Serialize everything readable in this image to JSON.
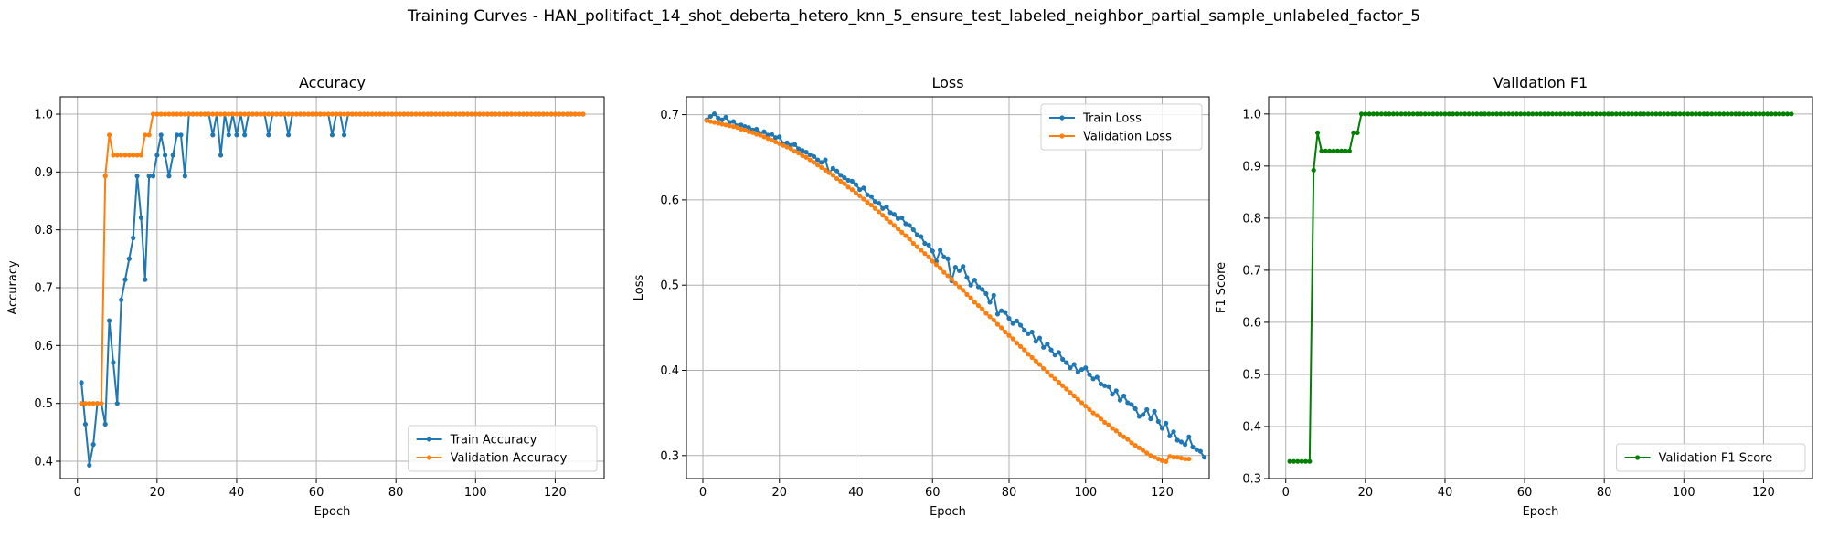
{
  "figure": {
    "suptitle": "Training Curves - HAN_politifact_14_shot_deberta_hetero_knn_5_ensure_test_labeled_neighbor_partial_sample_unlabeled_factor_5"
  },
  "colors": {
    "blue": "#1f77b4",
    "orange": "#ff7f0e",
    "green": "#008000",
    "grid": "#b0b0b0"
  },
  "chart_data": [
    {
      "type": "line",
      "title": "Accuracy",
      "xlabel": "Epoch",
      "ylabel": "Accuracy",
      "xlim": [
        -4.3,
        132.3
      ],
      "ylim": [
        0.37,
        1.03
      ],
      "xticks": [
        0,
        20,
        40,
        60,
        80,
        100,
        120
      ],
      "yticks": [
        0.4,
        0.5,
        0.6,
        0.7,
        0.8,
        0.9,
        1.0
      ],
      "grid": true,
      "legend_position": "lower-right",
      "series": [
        {
          "name": "Train Accuracy",
          "color": "#1f77b4",
          "start_epoch": 1,
          "values": [
            0.536,
            0.464,
            0.393,
            0.429,
            0.5,
            0.5,
            0.464,
            0.643,
            0.571,
            0.5,
            0.679,
            0.714,
            0.75,
            0.786,
            0.893,
            0.821,
            0.714,
            0.893,
            0.893,
            0.929,
            0.964,
            0.929,
            0.893,
            0.929,
            0.964,
            0.964,
            0.893,
            1.0,
            1.0,
            1.0,
            1.0,
            1.0,
            1.0,
            0.964,
            1.0,
            0.929,
            1.0,
            0.964,
            1.0,
            0.964,
            1.0,
            0.964,
            1.0,
            1.0,
            1.0,
            1.0,
            1.0,
            0.964,
            1.0,
            1.0,
            1.0,
            1.0,
            0.964,
            1.0,
            1.0,
            1.0,
            1.0,
            1.0,
            1.0,
            1.0,
            1.0,
            1.0,
            1.0,
            0.964,
            1.0,
            1.0,
            0.964,
            1.0,
            1.0,
            1.0,
            1.0,
            1.0,
            1.0,
            1.0,
            1.0,
            1.0,
            1.0,
            1.0,
            1.0,
            1.0,
            1.0,
            1.0,
            1.0,
            1.0,
            1.0,
            1.0,
            1.0,
            1.0,
            1.0,
            1.0,
            1.0,
            1.0,
            1.0,
            1.0,
            1.0,
            1.0,
            1.0,
            1.0,
            1.0,
            1.0,
            1.0,
            1.0,
            1.0,
            1.0,
            1.0,
            1.0,
            1.0,
            1.0,
            1.0,
            1.0,
            1.0,
            1.0,
            1.0,
            1.0,
            1.0,
            1.0,
            1.0,
            1.0,
            1.0,
            1.0,
            1.0,
            1.0,
            1.0,
            1.0,
            1.0,
            1.0,
            1.0
          ]
        },
        {
          "name": "Validation Accuracy",
          "color": "#ff7f0e",
          "start_epoch": 1,
          "values": [
            0.5,
            0.5,
            0.5,
            0.5,
            0.5,
            0.5,
            0.893,
            0.964,
            0.929,
            0.929,
            0.929,
            0.929,
            0.929,
            0.929,
            0.929,
            0.929,
            0.964,
            0.964,
            1.0,
            1.0,
            1.0,
            1.0,
            1.0,
            1.0,
            1.0,
            1.0,
            1.0,
            1.0,
            1.0,
            1.0,
            1.0,
            1.0,
            1.0,
            1.0,
            1.0,
            1.0,
            1.0,
            1.0,
            1.0,
            1.0,
            1.0,
            1.0,
            1.0,
            1.0,
            1.0,
            1.0,
            1.0,
            1.0,
            1.0,
            1.0,
            1.0,
            1.0,
            1.0,
            1.0,
            1.0,
            1.0,
            1.0,
            1.0,
            1.0,
            1.0,
            1.0,
            1.0,
            1.0,
            1.0,
            1.0,
            1.0,
            1.0,
            1.0,
            1.0,
            1.0,
            1.0,
            1.0,
            1.0,
            1.0,
            1.0,
            1.0,
            1.0,
            1.0,
            1.0,
            1.0,
            1.0,
            1.0,
            1.0,
            1.0,
            1.0,
            1.0,
            1.0,
            1.0,
            1.0,
            1.0,
            1.0,
            1.0,
            1.0,
            1.0,
            1.0,
            1.0,
            1.0,
            1.0,
            1.0,
            1.0,
            1.0,
            1.0,
            1.0,
            1.0,
            1.0,
            1.0,
            1.0,
            1.0,
            1.0,
            1.0,
            1.0,
            1.0,
            1.0,
            1.0,
            1.0,
            1.0,
            1.0,
            1.0,
            1.0,
            1.0,
            1.0,
            1.0,
            1.0,
            1.0,
            1.0,
            1.0,
            1.0
          ]
        }
      ]
    },
    {
      "type": "line",
      "title": "Loss",
      "xlabel": "Epoch",
      "ylabel": "Loss",
      "xlim": [
        -4.3,
        132.3
      ],
      "ylim": [
        0.273,
        0.721
      ],
      "xticks": [
        0,
        20,
        40,
        60,
        80,
        100,
        120
      ],
      "yticks": [
        0.3,
        0.4,
        0.5,
        0.6,
        0.7
      ],
      "grid": true,
      "legend_position": "upper-right",
      "series": [
        {
          "name": "Train Loss",
          "color": "#1f77b4",
          "start_epoch": 1,
          "values": [
            0.694,
            0.698,
            0.701,
            0.696,
            0.694,
            0.697,
            0.691,
            0.692,
            0.687,
            0.688,
            0.686,
            0.685,
            0.682,
            0.683,
            0.678,
            0.68,
            0.676,
            0.677,
            0.673,
            0.674,
            0.666,
            0.667,
            0.664,
            0.665,
            0.66,
            0.658,
            0.656,
            0.653,
            0.651,
            0.647,
            0.644,
            0.647,
            0.632,
            0.637,
            0.634,
            0.629,
            0.626,
            0.623,
            0.622,
            0.618,
            0.612,
            0.614,
            0.606,
            0.604,
            0.598,
            0.596,
            0.59,
            0.592,
            0.585,
            0.583,
            0.578,
            0.579,
            0.572,
            0.57,
            0.565,
            0.559,
            0.557,
            0.549,
            0.547,
            0.54,
            0.528,
            0.541,
            0.533,
            0.531,
            0.505,
            0.521,
            0.517,
            0.522,
            0.509,
            0.5,
            0.506,
            0.498,
            0.495,
            0.49,
            0.48,
            0.488,
            0.466,
            0.47,
            0.468,
            0.461,
            0.455,
            0.458,
            0.453,
            0.447,
            0.443,
            0.445,
            0.434,
            0.438,
            0.427,
            0.431,
            0.424,
            0.418,
            0.421,
            0.413,
            0.409,
            0.403,
            0.407,
            0.398,
            0.401,
            0.403,
            0.395,
            0.39,
            0.392,
            0.384,
            0.382,
            0.381,
            0.372,
            0.376,
            0.365,
            0.37,
            0.362,
            0.36,
            0.355,
            0.346,
            0.348,
            0.354,
            0.343,
            0.352,
            0.34,
            0.332,
            0.338,
            0.323,
            0.328,
            0.318,
            0.316,
            0.313,
            0.322,
            0.31,
            0.307,
            0.305,
            0.298
          ]
        },
        {
          "name": "Validation Loss",
          "color": "#ff7f0e",
          "start_epoch": 1,
          "values": [
            0.693,
            0.692,
            0.691,
            0.69,
            0.689,
            0.688,
            0.687,
            0.686,
            0.685,
            0.683,
            0.682,
            0.68,
            0.679,
            0.677,
            0.676,
            0.674,
            0.672,
            0.67,
            0.668,
            0.666,
            0.664,
            0.662,
            0.66,
            0.657,
            0.655,
            0.652,
            0.65,
            0.647,
            0.644,
            0.641,
            0.638,
            0.635,
            0.632,
            0.629,
            0.625,
            0.622,
            0.619,
            0.615,
            0.612,
            0.608,
            0.605,
            0.601,
            0.597,
            0.594,
            0.59,
            0.586,
            0.582,
            0.578,
            0.574,
            0.57,
            0.566,
            0.562,
            0.558,
            0.554,
            0.549,
            0.545,
            0.541,
            0.537,
            0.533,
            0.528,
            0.524,
            0.52,
            0.515,
            0.511,
            0.507,
            0.502,
            0.498,
            0.494,
            0.489,
            0.485,
            0.48,
            0.476,
            0.472,
            0.467,
            0.463,
            0.459,
            0.454,
            0.45,
            0.445,
            0.441,
            0.437,
            0.432,
            0.428,
            0.424,
            0.419,
            0.415,
            0.411,
            0.407,
            0.402,
            0.398,
            0.394,
            0.39,
            0.386,
            0.382,
            0.378,
            0.374,
            0.37,
            0.366,
            0.362,
            0.358,
            0.354,
            0.35,
            0.347,
            0.343,
            0.339,
            0.336,
            0.332,
            0.329,
            0.325,
            0.322,
            0.319,
            0.315,
            0.312,
            0.309,
            0.306,
            0.303,
            0.3,
            0.298,
            0.296,
            0.294,
            0.293,
            0.299,
            0.298,
            0.298,
            0.297,
            0.296,
            0.296
          ]
        }
      ]
    },
    {
      "type": "line",
      "title": "Validation F1",
      "xlabel": "Epoch",
      "ylabel": "F1 Score",
      "xlim": [
        -4.3,
        132.3
      ],
      "ylim": [
        0.3,
        1.033
      ],
      "xticks": [
        0,
        20,
        40,
        60,
        80,
        100,
        120
      ],
      "yticks": [
        0.3,
        0.4,
        0.5,
        0.6,
        0.7,
        0.8,
        0.9,
        1.0
      ],
      "grid": true,
      "legend_position": "lower-right",
      "series": [
        {
          "name": "Validation F1 Score",
          "color": "#008000",
          "start_epoch": 1,
          "values": [
            0.333,
            0.333,
            0.333,
            0.333,
            0.333,
            0.333,
            0.892,
            0.964,
            0.929,
            0.929,
            0.929,
            0.929,
            0.929,
            0.929,
            0.929,
            0.929,
            0.964,
            0.964,
            1.0,
            1.0,
            1.0,
            1.0,
            1.0,
            1.0,
            1.0,
            1.0,
            1.0,
            1.0,
            1.0,
            1.0,
            1.0,
            1.0,
            1.0,
            1.0,
            1.0,
            1.0,
            1.0,
            1.0,
            1.0,
            1.0,
            1.0,
            1.0,
            1.0,
            1.0,
            1.0,
            1.0,
            1.0,
            1.0,
            1.0,
            1.0,
            1.0,
            1.0,
            1.0,
            1.0,
            1.0,
            1.0,
            1.0,
            1.0,
            1.0,
            1.0,
            1.0,
            1.0,
            1.0,
            1.0,
            1.0,
            1.0,
            1.0,
            1.0,
            1.0,
            1.0,
            1.0,
            1.0,
            1.0,
            1.0,
            1.0,
            1.0,
            1.0,
            1.0,
            1.0,
            1.0,
            1.0,
            1.0,
            1.0,
            1.0,
            1.0,
            1.0,
            1.0,
            1.0,
            1.0,
            1.0,
            1.0,
            1.0,
            1.0,
            1.0,
            1.0,
            1.0,
            1.0,
            1.0,
            1.0,
            1.0,
            1.0,
            1.0,
            1.0,
            1.0,
            1.0,
            1.0,
            1.0,
            1.0,
            1.0,
            1.0,
            1.0,
            1.0,
            1.0,
            1.0,
            1.0,
            1.0,
            1.0,
            1.0,
            1.0,
            1.0,
            1.0,
            1.0,
            1.0,
            1.0,
            1.0,
            1.0,
            1.0
          ]
        }
      ]
    }
  ]
}
